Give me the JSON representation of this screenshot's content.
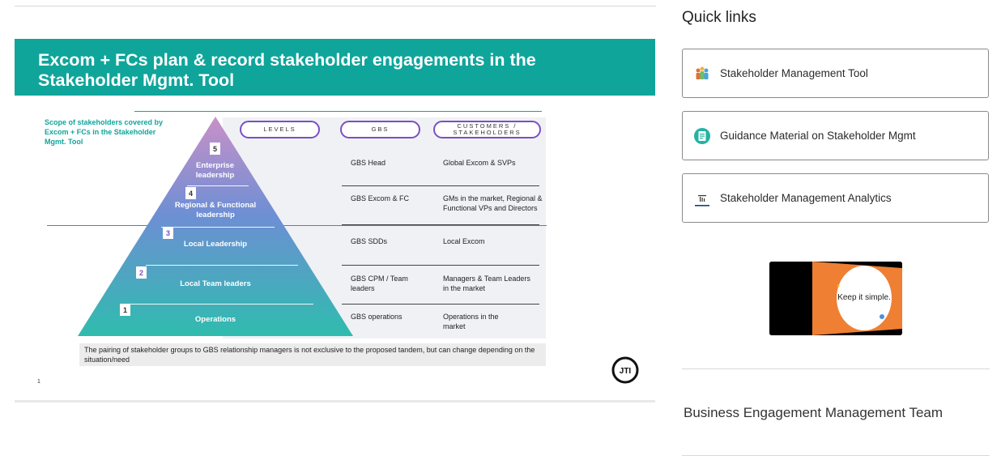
{
  "slide": {
    "title_line1": "Excom + FCs plan & record stakeholder engagements in the",
    "title_line2": "Stakeholder Mgmt. Tool",
    "scope_text": "Scope of stakeholders covered by Excom + FCs in the Stakeholder Mgmt. Tool",
    "headers": {
      "levels": "LEVELS",
      "gbs": "GBS",
      "customers": "CUSTOMERS / STAKEHOLDERS"
    },
    "levels": [
      {
        "num": "5",
        "label": "Enterprise leadership",
        "gbs": "GBS Head",
        "customers": "Global Excom & SVPs"
      },
      {
        "num": "4",
        "label": "Regional & Functional leadership",
        "gbs": "GBS Excom & FC",
        "customers": "GMs in the market, Regional & Functional VPs and Directors"
      },
      {
        "num": "3",
        "label": "Local Leadership",
        "gbs": "GBS SDDs",
        "customers": "Local Excom"
      },
      {
        "num": "2",
        "label": "Local Team leaders",
        "gbs": "GBS CPM / Team leaders",
        "customers": "Managers & Team Leaders in the market"
      },
      {
        "num": "1",
        "label": "Operations",
        "gbs": "GBS operations",
        "customers": "Operations in the market"
      }
    ],
    "note": "The pairing of stakeholder groups to GBS relationship managers is not exclusive to the proposed tandem, but can change depending on the situation/need",
    "page_number": "1",
    "logo_text": "new JTI",
    "colors": {
      "banner": "#0fa59b",
      "pill_border": "#7b4fc4"
    }
  },
  "quick_links": {
    "title": "Quick links",
    "items": [
      {
        "label": "Stakeholder Management Tool",
        "icon": "people-group-icon"
      },
      {
        "label": "Guidance Material on Stakeholder Mgmt",
        "icon": "document-circle-icon"
      },
      {
        "label": "Stakeholder Management Analytics",
        "icon": "analytics-chart-icon"
      }
    ]
  },
  "video": {
    "caption": "Keep it simple."
  },
  "team": {
    "title": "Business Engagement Management Team"
  }
}
